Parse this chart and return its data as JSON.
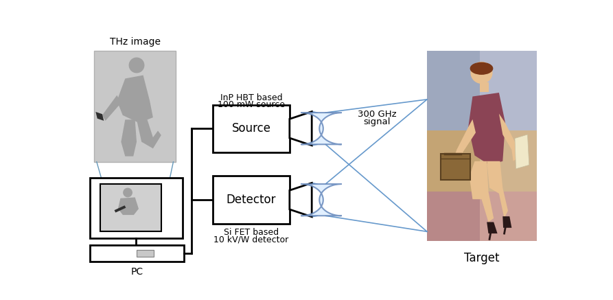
{
  "bg_color": "#ffffff",
  "thz_label": "THz image",
  "target_label": "Target",
  "pc_label": "PC",
  "source_label": "Source",
  "detector_label": "Detector",
  "source_desc1": "InP HBT based",
  "source_desc2": "100 mW source",
  "detector_desc1": "Si FET based",
  "detector_desc2": "10 kV/W detector",
  "signal_label1": "300 GHz",
  "signal_label2": "signal",
  "beam_color": "#6699cc",
  "box_color": "#000000",
  "thz_bg": "#c8c8c8",
  "screen_bg": "#d0d0d0",
  "person_color": "#a0a0a0",
  "person_dark": "#787878",
  "knife_color": "#303030",
  "target_tl": "#9ea8be",
  "target_tr": "#b4bace",
  "target_ml": "#c4a474",
  "target_mr": "#d0b48e",
  "target_bl": "#b88888",
  "target_br": "#cca098",
  "dress_color": "#8b4455",
  "skin_color": "#e8c090",
  "hair_color": "#7a3818",
  "briefcase_color": "#8a6838",
  "paper_color": "#f0e8c8",
  "shoe_color": "#2a1818"
}
